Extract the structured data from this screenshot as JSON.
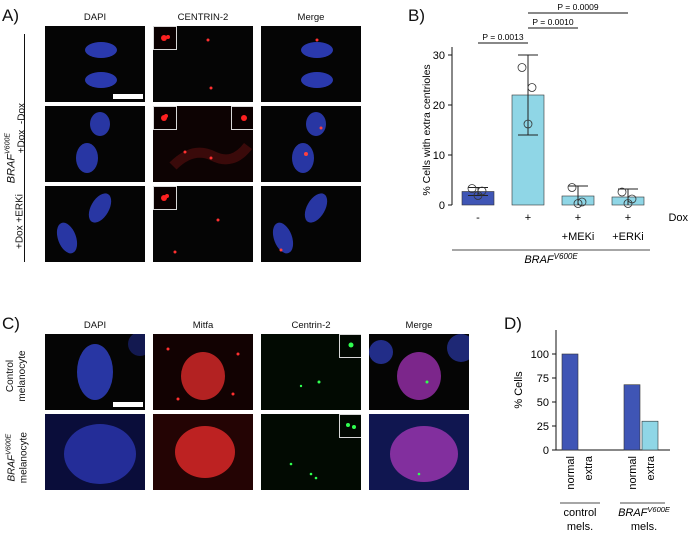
{
  "panelA": {
    "label": "A)",
    "columns": [
      "DAPI",
      "CENTRIN-2",
      "Merge"
    ],
    "genotype": "BRAF",
    "genotype_sup": "V600E",
    "rows": [
      "-Dox",
      "+Dox",
      "+Dox +ERKi"
    ]
  },
  "panelB": {
    "label": "B)",
    "pvalues": [
      "P = 0.0013",
      "P = 0.0010",
      "P = 0.0009"
    ],
    "dox_label": "Dox",
    "genotype": "BRAF",
    "genotype_sup": "V600E",
    "cat_top": [
      "-",
      "+",
      "+",
      "+"
    ],
    "cat_bottom": [
      "",
      "",
      "+MEKi",
      "+ERKi"
    ]
  },
  "panelC": {
    "label": "C)",
    "columns": [
      "DAPI",
      "Mitfa",
      "Centrin-2",
      "Merge"
    ],
    "row1": [
      "Control",
      "melanocyte"
    ],
    "row2_genotype": "BRAF",
    "row2_sup": "V600E",
    "row2_cell": "melanocyte"
  },
  "panelD": {
    "label": "D)",
    "group1": [
      "control",
      "mels."
    ],
    "group2_genotype": "BRAF",
    "group2_sup": "V600E",
    "group2_sub": "mels."
  },
  "colors": {
    "normal": "#3f55b5",
    "extra": "#8fd6e6",
    "nucleus": "#2b3fb8",
    "centrin_red": "#ff2020",
    "centrin_green": "#20e040"
  },
  "chart_data": [
    {
      "type": "bar",
      "ylabel": "% Cells with extra centrioles",
      "categories": [
        "-",
        "+",
        "+ +MEKi",
        "+ +ERKi"
      ],
      "values": [
        2.7,
        22.0,
        1.8,
        1.6
      ],
      "errors": [
        0.8,
        8.0,
        2.0,
        1.6
      ],
      "points": [
        [
          3.3,
          2.8,
          1.9
        ],
        [
          27.5,
          23.5,
          16.2
        ],
        [
          3.5,
          0.6,
          0.3
        ],
        [
          2.6,
          1.2,
          0.3
        ]
      ],
      "ylim": [
        0,
        30
      ],
      "yticks": [
        0,
        10,
        20,
        30
      ],
      "colors": [
        "#3f55b5",
        "#8fd6e6",
        "#8fd6e6",
        "#8fd6e6"
      ]
    },
    {
      "type": "bar",
      "ylabel": "% Cells",
      "categories": [
        "normal",
        "extra",
        "normal",
        "extra"
      ],
      "values": [
        100,
        0,
        68,
        30
      ],
      "ylim": [
        0,
        125
      ],
      "yticks": [
        0,
        25,
        50,
        75,
        100
      ],
      "colors": [
        "#3f55b5",
        "#8fd6e6",
        "#3f55b5",
        "#8fd6e6"
      ]
    }
  ]
}
